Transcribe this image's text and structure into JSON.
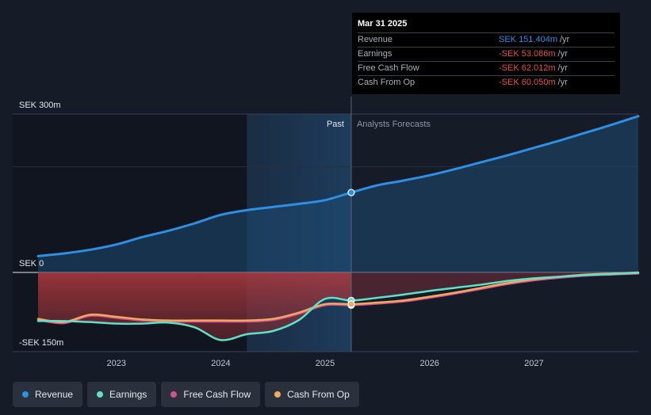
{
  "chart_data": {
    "type": "area",
    "currency_unit": "SEK",
    "y_labels": [
      {
        "text": "SEK 300m",
        "value": 300
      },
      {
        "text": "SEK 0",
        "value": 0
      },
      {
        "text": "-SEK 150m",
        "value": -150
      }
    ],
    "ylim": [
      -150,
      300
    ],
    "x_ticks": [
      "2023",
      "2024",
      "2025",
      "2026",
      "2027"
    ],
    "x_tick_values": [
      2023.0,
      2024.0,
      2025.0,
      2026.0,
      2027.0
    ],
    "xlim": [
      2022.25,
      2028.0
    ],
    "divider_x": 2025.25,
    "forecast_band_start": 2024.25,
    "past_label": "Past",
    "forecast_label": "Analysts Forecasts",
    "series": [
      {
        "name": "Revenue",
        "color": "#2e8fe3",
        "x": [
          2022.25,
          2022.5,
          2022.75,
          2023.0,
          2023.25,
          2023.5,
          2023.75,
          2024.0,
          2024.25,
          2024.5,
          2024.75,
          2025.0,
          2025.25,
          2025.5,
          2025.75,
          2026.0,
          2026.25,
          2026.5,
          2026.75,
          2027.0,
          2027.25,
          2027.5,
          2027.75,
          2028.0
        ],
        "values": [
          31,
          36,
          43,
          53,
          67,
          79,
          93,
          109,
          118,
          124,
          130,
          137,
          151.4,
          165,
          174,
          184,
          196,
          209,
          222,
          236,
          250,
          265,
          280,
          296
        ]
      },
      {
        "name": "Earnings",
        "color": "#5ee0c9",
        "x": [
          2022.25,
          2022.5,
          2022.75,
          2023.0,
          2023.25,
          2023.5,
          2023.75,
          2024.0,
          2024.25,
          2024.5,
          2024.75,
          2025.0,
          2025.25,
          2025.5,
          2025.75,
          2026.0,
          2026.25,
          2026.5,
          2026.75,
          2027.0,
          2027.25,
          2027.5,
          2027.75,
          2028.0
        ],
        "values": [
          -92,
          -92,
          -94,
          -97,
          -97,
          -95,
          -104,
          -128,
          -117,
          -111,
          -90,
          -50,
          -53.1,
          -48,
          -42,
          -35,
          -29,
          -23,
          -16,
          -11,
          -8,
          -5,
          -3,
          -1
        ]
      },
      {
        "name": "Free Cash Flow",
        "color": "#d44f8e",
        "x": [
          2022.25,
          2022.5,
          2022.75,
          2023.0,
          2023.25,
          2023.5,
          2023.75,
          2024.0,
          2024.25,
          2024.5,
          2024.75,
          2025.0,
          2025.25,
          2025.5,
          2025.75,
          2026.0,
          2026.25,
          2026.5,
          2026.75,
          2027.0,
          2027.25,
          2027.5,
          2027.75,
          2028.0
        ],
        "values": [
          -90,
          -96,
          -82,
          -86,
          -91,
          -93,
          -93,
          -93,
          -93,
          -90,
          -78,
          -62,
          -62.0,
          -59,
          -55,
          -48,
          -40,
          -31,
          -22,
          -15,
          -10,
          -6,
          -4,
          -2
        ]
      },
      {
        "name": "Cash From Op",
        "color": "#f0a961",
        "x": [
          2022.25,
          2022.5,
          2022.75,
          2023.0,
          2023.25,
          2023.5,
          2023.75,
          2024.0,
          2024.25,
          2024.5,
          2024.75,
          2025.0,
          2025.25,
          2025.5,
          2025.75,
          2026.0,
          2026.25,
          2026.5,
          2026.75,
          2027.0,
          2027.25,
          2027.5,
          2027.75,
          2028.0
        ],
        "values": [
          -88,
          -94,
          -80,
          -84,
          -89,
          -91,
          -91,
          -91,
          -91,
          -88,
          -76,
          -60,
          -60.05,
          -57,
          -53,
          -46,
          -38,
          -29,
          -20,
          -13,
          -8,
          -4,
          -2,
          0
        ]
      }
    ]
  },
  "tooltip": {
    "date": "Mar 31 2025",
    "rows": [
      {
        "label": "Revenue",
        "value": "SEK 151.404m",
        "unit": "/yr",
        "color": "#2e8fe3"
      },
      {
        "label": "Earnings",
        "value": "-SEK 53.086m",
        "unit": "/yr",
        "color": "#e05252"
      },
      {
        "label": "Free Cash Flow",
        "value": "-SEK 62.012m",
        "unit": "/yr",
        "color": "#e05252"
      },
      {
        "label": "Cash From Op",
        "value": "-SEK 60.050m",
        "unit": "/yr",
        "color": "#e05252"
      }
    ]
  },
  "legend": [
    {
      "label": "Revenue",
      "color": "#2e8fe3"
    },
    {
      "label": "Earnings",
      "color": "#5ee0c9"
    },
    {
      "label": "Free Cash Flow",
      "color": "#d44f8e"
    },
    {
      "label": "Cash From Op",
      "color": "#f0a961"
    }
  ]
}
